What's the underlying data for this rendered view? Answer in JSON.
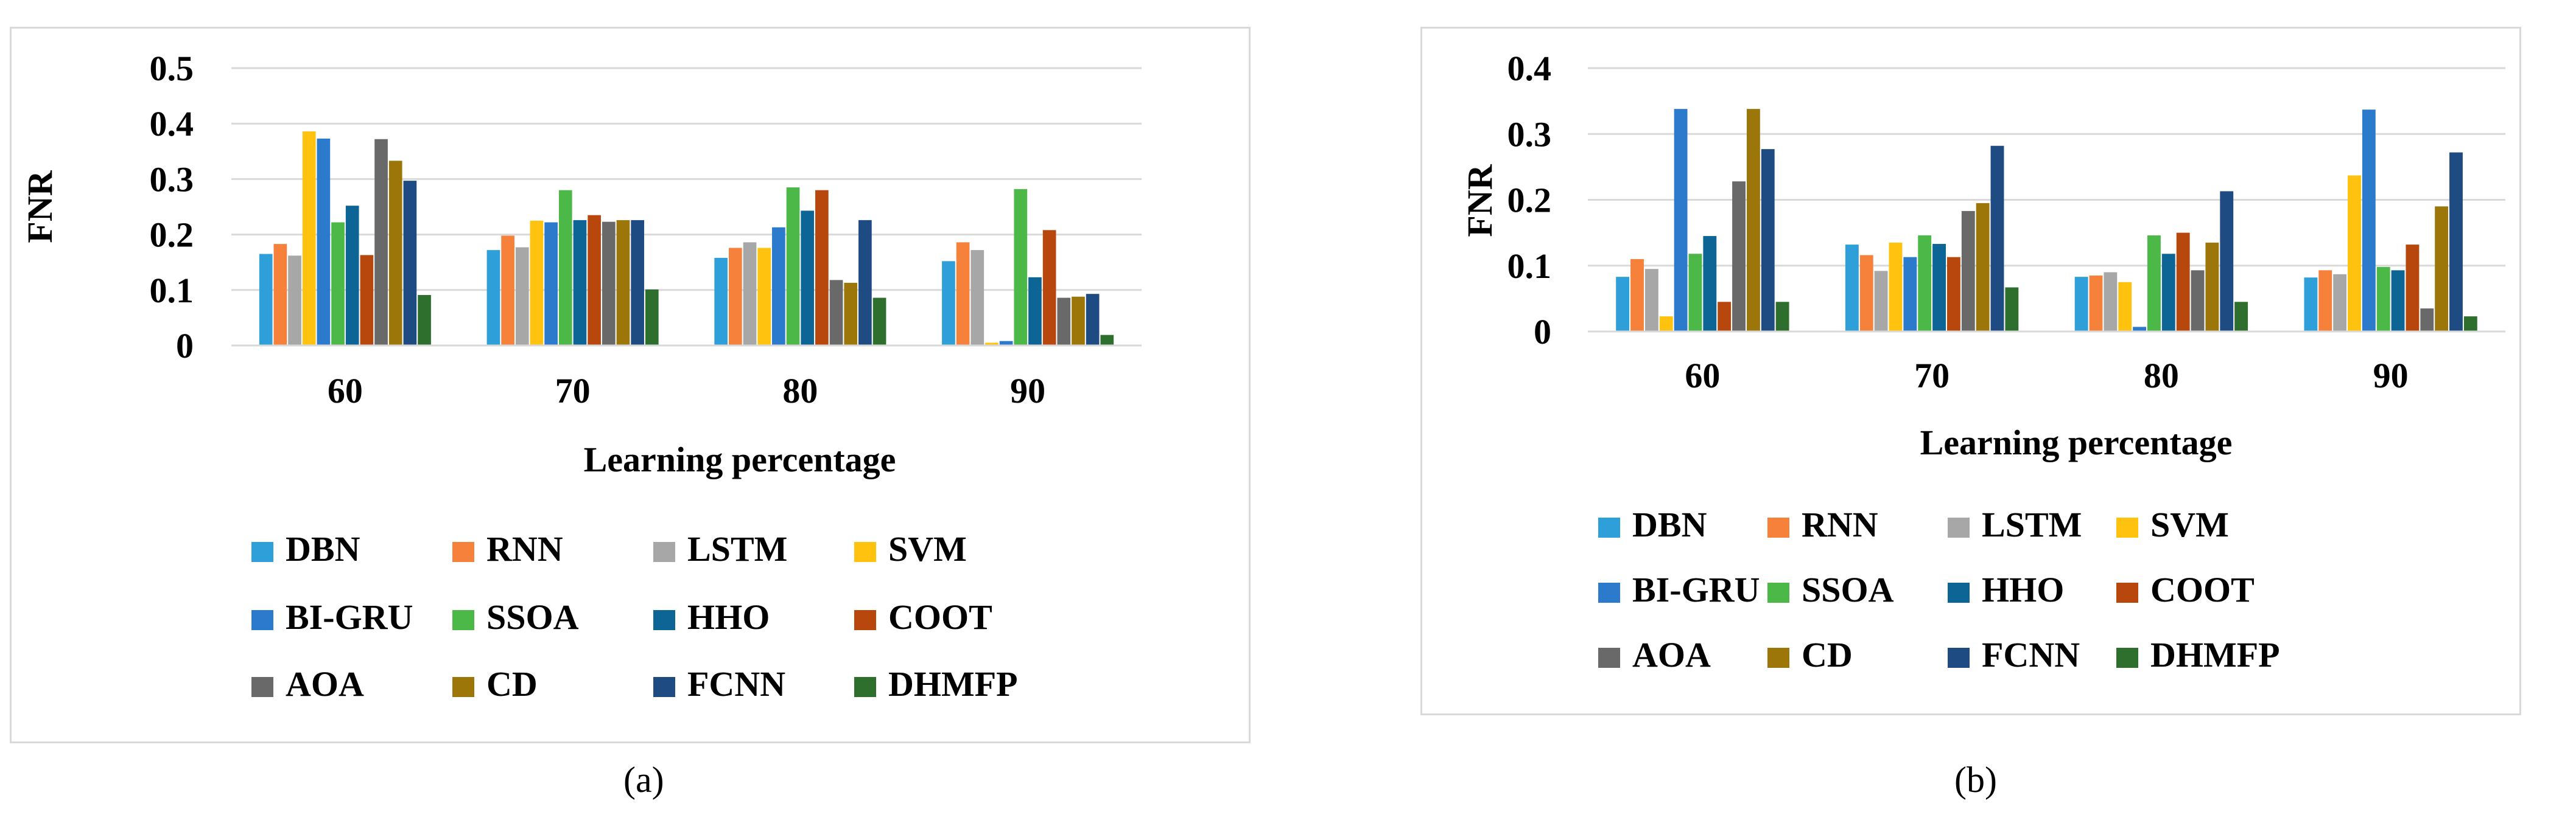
{
  "chart_data": [
    {
      "type": "bar",
      "panel_label": "(a)",
      "title": "",
      "xlabel": "Learning percentage",
      "ylabel": "FNR",
      "ylim": [
        0,
        0.5
      ],
      "yticks": [
        "0",
        "0.1",
        "0.2",
        "0.3",
        "0.4",
        "0.5"
      ],
      "grid": true,
      "legend_position": "bottom",
      "categories": [
        "60",
        "70",
        "80",
        "90"
      ],
      "series": [
        {
          "name": "DBN",
          "color": "#2e9fd8",
          "values": [
            0.165,
            0.172,
            0.158,
            0.152
          ]
        },
        {
          "name": "RNN",
          "color": "#f5813a",
          "values": [
            0.183,
            0.198,
            0.176,
            0.186
          ]
        },
        {
          "name": "LSTM",
          "color": "#a7a7a7",
          "values": [
            0.162,
            0.177,
            0.186,
            0.172
          ]
        },
        {
          "name": "SVM",
          "color": "#ffc20e",
          "values": [
            0.386,
            0.225,
            0.176,
            0.005
          ]
        },
        {
          "name": "BI-GRU",
          "color": "#2c7acb",
          "values": [
            0.373,
            0.222,
            0.213,
            0.008
          ]
        },
        {
          "name": "SSOA",
          "color": "#4cb848",
          "values": [
            0.222,
            0.28,
            0.285,
            0.282
          ]
        },
        {
          "name": "HHO",
          "color": "#0c6595",
          "values": [
            0.252,
            0.226,
            0.243,
            0.123
          ]
        },
        {
          "name": "COOT",
          "color": "#b8470d",
          "values": [
            0.163,
            0.235,
            0.28,
            0.208
          ]
        },
        {
          "name": "AOA",
          "color": "#696969",
          "values": [
            0.372,
            0.223,
            0.118,
            0.086
          ]
        },
        {
          "name": "CD",
          "color": "#9c7608",
          "values": [
            0.333,
            0.226,
            0.113,
            0.088
          ]
        },
        {
          "name": "FCNN",
          "color": "#1e4b82",
          "values": [
            0.297,
            0.226,
            0.226,
            0.093
          ]
        },
        {
          "name": "DHMFP",
          "color": "#2e6f2e",
          "values": [
            0.091,
            0.101,
            0.086,
            0.019
          ]
        }
      ]
    },
    {
      "type": "bar",
      "panel_label": "(b)",
      "title": "",
      "xlabel": "Learning percentage",
      "ylabel": "FNR",
      "ylim": [
        0,
        0.4
      ],
      "yticks": [
        "0",
        "0.1",
        "0.2",
        "0.3",
        "0.4"
      ],
      "grid": true,
      "legend_position": "bottom",
      "categories": [
        "60",
        "70",
        "80",
        "90"
      ],
      "series": [
        {
          "name": "DBN",
          "color": "#2e9fd8",
          "values": [
            0.083,
            0.132,
            0.083,
            0.082
          ]
        },
        {
          "name": "RNN",
          "color": "#f5813a",
          "values": [
            0.11,
            0.116,
            0.085,
            0.093
          ]
        },
        {
          "name": "LSTM",
          "color": "#a7a7a7",
          "values": [
            0.095,
            0.092,
            0.09,
            0.087
          ]
        },
        {
          "name": "SVM",
          "color": "#ffc20e",
          "values": [
            0.023,
            0.135,
            0.075,
            0.237
          ]
        },
        {
          "name": "BI-GRU",
          "color": "#2c7acb",
          "values": [
            0.338,
            0.113,
            0.007,
            0.337
          ]
        },
        {
          "name": "SSOA",
          "color": "#4cb848",
          "values": [
            0.118,
            0.146,
            0.146,
            0.098
          ]
        },
        {
          "name": "HHO",
          "color": "#0c6595",
          "values": [
            0.145,
            0.133,
            0.118,
            0.093
          ]
        },
        {
          "name": "COOT",
          "color": "#b8470d",
          "values": [
            0.045,
            0.113,
            0.15,
            0.132
          ]
        },
        {
          "name": "AOA",
          "color": "#696969",
          "values": [
            0.228,
            0.183,
            0.093,
            0.035
          ]
        },
        {
          "name": "CD",
          "color": "#9c7608",
          "values": [
            0.338,
            0.195,
            0.135,
            0.19
          ]
        },
        {
          "name": "FCNN",
          "color": "#1e4b82",
          "values": [
            0.277,
            0.282,
            0.213,
            0.272
          ]
        },
        {
          "name": "DHMFP",
          "color": "#2e6f2e",
          "values": [
            0.045,
            0.067,
            0.045,
            0.023
          ]
        }
      ]
    }
  ]
}
